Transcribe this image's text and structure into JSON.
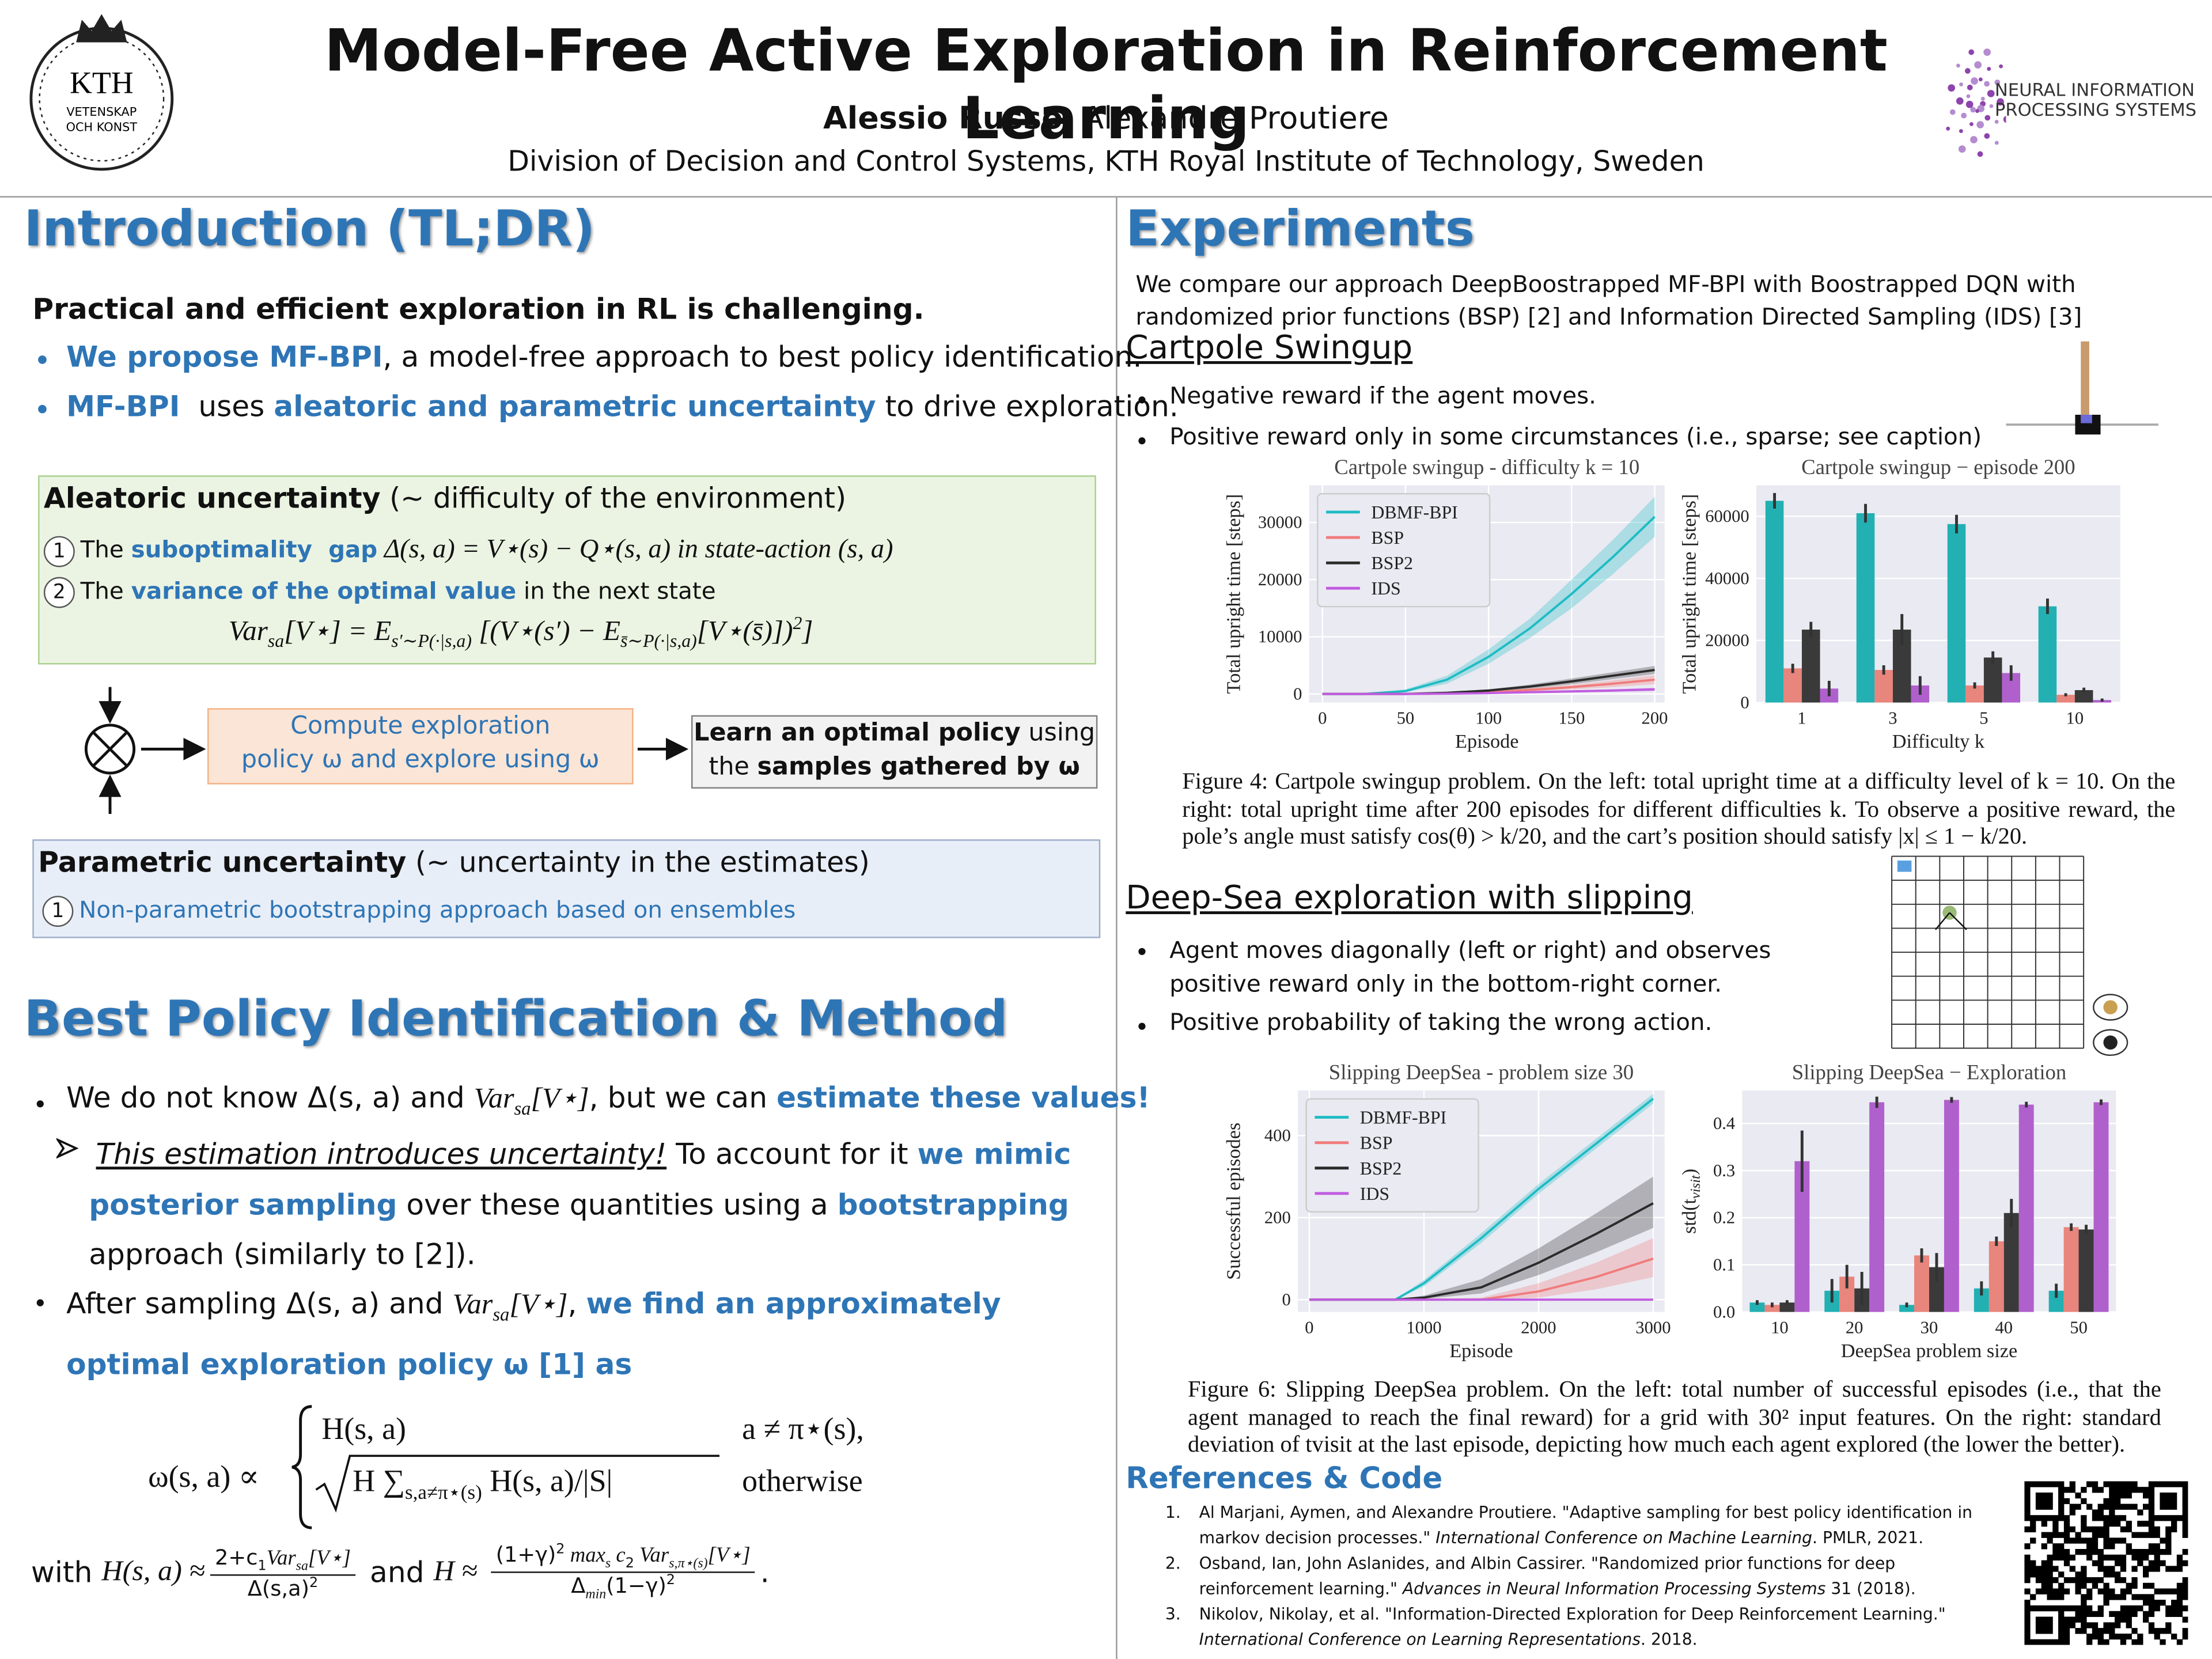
{
  "header": {
    "title": "Model-Free Active Exploration in Reinforcement Learning",
    "author_bold": "Alessio Russo",
    "author_rest": ", Alexandre Proutiere",
    "affiliation": "Division of Decision and Control Systems, KTH Royal Institute of Technology, Sweden",
    "kth": [
      "KTH",
      "VETENSKAP",
      "OCH KONST"
    ],
    "neurips": [
      "NEURAL INFORMATION",
      "PROCESSING SYSTEMS"
    ]
  },
  "intro": {
    "heading": "Introduction (TL;DR)",
    "lead": "Practical and efficient exploration in RL is challenging.",
    "bullets": [
      [
        "We propose MF-BPI",
        ", a model-free approach to best policy identification."
      ],
      [
        "MF-BPI",
        "  uses ",
        "aleatoric and parametric uncertainty",
        " to drive exploration."
      ]
    ]
  },
  "aleatoric": {
    "title": [
      "Aleatoric uncertainty",
      " (~ difficulty of the environment)"
    ],
    "items": [
      {
        "num": "1",
        "text": [
          "The ",
          "suboptimality  gap",
          " Δ(s, a) = V⋆(s) − Q⋆(s, a) in state-action (s, a)"
        ]
      },
      {
        "num": "2",
        "text": [
          "The ",
          "variance of the optimal value",
          " in the next state"
        ]
      }
    ],
    "formula": [
      "Var",
      "sa",
      "[V⋆] = E",
      "s′∼P(·|s,a)",
      " [(V⋆(s′) − E",
      "s̄∼P(·|s,a)",
      "[V⋆(s̄)])",
      "2",
      "]"
    ]
  },
  "flow": {
    "compute": [
      "Compute exploration",
      "policy ω and explore using ω"
    ],
    "learn": [
      "Learn an optimal policy",
      " using",
      "the ",
      "samples gathered by ω"
    ]
  },
  "parametric": {
    "title": [
      "Parametric uncertainty",
      " (~ uncertainty in the estimates)"
    ],
    "num": "1",
    "text": "Non-parametric bootstrapping approach based on ensembles"
  },
  "bpi": {
    "heading": "Best Policy Identification & Method",
    "bullet1": [
      "We do not know Δ(s, a) and ",
      "Var",
      "sa",
      "[V⋆]",
      ", but we can ",
      "estimate these values",
      "!"
    ],
    "sub": [
      "This estimation introduces uncertainty!",
      " To account for it ",
      "we mimic posterior sampling",
      " over these quantities using a ",
      "bootstrapping",
      " approach (similarly to [2])."
    ],
    "bullet2": [
      "After sampling Δ(s, a) and ",
      "Var",
      "sa",
      "[V⋆]",
      ", ",
      "we find an approximately optimal exploration policy ω [1] as"
    ],
    "omega": {
      "lhs": "ω(s, a) ∝",
      "case1": "H(s, a)",
      "cond1": "a ≠ π⋆(s),",
      "case2": [
        "H ∑",
        "s,a≠π⋆(s)",
        " H(s, a)/|S|"
      ],
      "cond2": "otherwise"
    },
    "with": [
      "with ",
      "H(s, a) ≈",
      "2+c",
      "1",
      "Var",
      "sa",
      "[V⋆]",
      "Δ(s,a)",
      "2",
      " and ",
      "H ≈",
      "(1+γ)",
      "2",
      " max",
      "s",
      " c",
      "2",
      " Var",
      "s,π⋆(s)",
      "[V⋆]",
      "Δ",
      "min",
      "(1−γ)",
      "2",
      "."
    ]
  },
  "experiments": {
    "heading": "Experiments",
    "intro": "We compare our approach DeepBoostrapped MF-BPI with Boostrapped DQN with randomized prior functions (BSP) [2] and Information Directed Sampling (IDS) [3]",
    "cartpole": {
      "heading": "Cartpole Swingup",
      "bullets": [
        "Negative reward if the agent moves.",
        "Positive reward only in some circumstances (i.e., sparse; see caption)"
      ],
      "caption": "Figure 4: Cartpole swingup problem. On the left: total upright time at a difficulty level of k = 10. On the right: total upright time after 200 episodes for different difficulties k. To observe a positive reward, the pole’s angle must satisfy cos(θ) > k/20, and the cart’s position should satisfy |x| ≤ 1 − k/20."
    },
    "deepsea": {
      "heading": "Deep-Sea exploration with slipping",
      "bullets": [
        "Agent moves diagonally (left or right) and observes positive reward only in the bottom-right corner.",
        "Positive probability of taking the wrong action."
      ],
      "caption": "Figure 6: Slipping DeepSea problem. On the left: total number of successful episodes (i.e., that the agent managed to reach the final reward) for a grid with 30² input features. On the right: standard deviation of tvisit at the last episode, depicting how much each agent explored (the lower the better)."
    }
  },
  "references": {
    "heading": "References & Code",
    "items": [
      {
        "num": "1.",
        "text": [
          "Al Marjani, Aymen, and Alexandre Proutiere. \"Adaptive sampling for best policy identification in markov decision processes.\" ",
          "International Conference on Machine Learning",
          ". PMLR, 2021."
        ]
      },
      {
        "num": "2.",
        "text": [
          "Osband, Ian, John Aslanides, and Albin Cassirer. \"Randomized prior functions for deep reinforcement learning.\" ",
          "Advances in Neural Information Processing Systems",
          " 31 (2018)."
        ]
      },
      {
        "num": "3.",
        "text": [
          "Nikolov, Nikolay, et al. \"Information-Directed Exploration for Deep Reinforcement Learning.\" ",
          "International Conference on Learning Representations",
          ". 2018."
        ]
      }
    ]
  },
  "chart_data": [
    {
      "type": "line",
      "title": "Cartpole swingup - difficulty k = 10",
      "x_label": "Episode",
      "y_label": "Total upright time [steps]",
      "x": [
        0,
        25,
        50,
        75,
        100,
        125,
        150,
        175,
        200
      ],
      "xlim": [
        -8,
        206
      ],
      "xticks": [
        0,
        50,
        100,
        150,
        200
      ],
      "ylim": [
        -1500,
        36500
      ],
      "yticks": [
        0,
        10000,
        20000,
        30000
      ],
      "grid": true,
      "legend": "upper left",
      "series": [
        {
          "name": "DBMF-BPI",
          "color": "#1fbcc4",
          "values": [
            0,
            0,
            500,
            2500,
            6500,
            11500,
            17500,
            24000,
            31000
          ],
          "lower": [
            0,
            0,
            300,
            1800,
            5300,
            9800,
            15000,
            21000,
            27500
          ],
          "upper": [
            0,
            0,
            800,
            3200,
            7800,
            13200,
            20000,
            27000,
            34500
          ]
        },
        {
          "name": "BSP",
          "color": "#f07c7c",
          "values": [
            0,
            0,
            0,
            100,
            300,
            700,
            1200,
            1800,
            2500
          ],
          "lower": [
            0,
            0,
            0,
            50,
            150,
            400,
            800,
            1200,
            1700
          ],
          "upper": [
            0,
            0,
            0,
            150,
            450,
            1000,
            1600,
            2400,
            3300
          ]
        },
        {
          "name": "BSP2",
          "color": "#2b2b2b",
          "values": [
            0,
            0,
            0,
            200,
            600,
            1300,
            2200,
            3200,
            4200
          ],
          "lower": [
            0,
            0,
            0,
            120,
            400,
            950,
            1700,
            2600,
            3500
          ],
          "upper": [
            0,
            0,
            0,
            280,
            800,
            1650,
            2700,
            3800,
            4900
          ]
        },
        {
          "name": "IDS",
          "color": "#c05ce0",
          "values": [
            0,
            0,
            0,
            50,
            150,
            300,
            450,
            600,
            800
          ],
          "lower": [
            0,
            0,
            0,
            20,
            80,
            180,
            280,
            380,
            500
          ],
          "upper": [
            0,
            0,
            0,
            80,
            220,
            420,
            620,
            820,
            1100
          ]
        }
      ]
    },
    {
      "type": "bar",
      "title": "Cartpole swingup  −  episode 200",
      "x_label": "Difficulty k",
      "y_label": "Total upright time [steps]",
      "categories": [
        "1",
        "3",
        "5",
        "10"
      ],
      "ylim": [
        0,
        70000
      ],
      "yticks": [
        0,
        20000,
        40000,
        60000
      ],
      "grid": true,
      "series": [
        {
          "name": "DBMF-BPI",
          "color": "#22b0b3",
          "values": [
            65000,
            61000,
            57500,
            31000
          ],
          "errors": [
            2500,
            3000,
            3000,
            2500
          ]
        },
        {
          "name": "BSP",
          "color": "#e8857c",
          "values": [
            11000,
            10500,
            5500,
            2500
          ],
          "errors": [
            1500,
            1500,
            1000,
            500
          ]
        },
        {
          "name": "BSP2",
          "color": "#3a3a3a",
          "values": [
            23500,
            23500,
            14500,
            4000
          ],
          "errors": [
            2500,
            5000,
            2000,
            800
          ]
        },
        {
          "name": "IDS",
          "color": "#b060cc",
          "values": [
            4500,
            5500,
            9500,
            800
          ],
          "errors": [
            2500,
            3000,
            2500,
            500
          ]
        }
      ]
    },
    {
      "type": "line",
      "title": "Slipping DeepSea - problem size 30",
      "x_label": "Episode",
      "y_label": "Successful episodes",
      "x": [
        0,
        500,
        750,
        1000,
        1500,
        2000,
        2500,
        3000
      ],
      "xlim": [
        -100,
        3100
      ],
      "xticks": [
        0,
        1000,
        2000,
        3000
      ],
      "ylim": [
        -30,
        510
      ],
      "yticks": [
        0,
        200,
        400
      ],
      "grid": true,
      "legend": "upper left",
      "series": [
        {
          "name": "DBMF-BPI",
          "color": "#1fbcc4",
          "values": [
            0,
            0,
            0,
            40,
            150,
            270,
            380,
            490
          ],
          "lower": [
            0,
            0,
            0,
            32,
            138,
            258,
            368,
            478
          ],
          "upper": [
            0,
            0,
            0,
            48,
            162,
            282,
            392,
            502
          ]
        },
        {
          "name": "BSP",
          "color": "#f07c7c",
          "values": [
            0,
            0,
            0,
            0,
            0,
            20,
            55,
            100
          ],
          "lower": [
            0,
            0,
            0,
            0,
            0,
            5,
            25,
            55
          ],
          "upper": [
            0,
            0,
            0,
            0,
            5,
            40,
            90,
            150
          ]
        },
        {
          "name": "BSP2",
          "color": "#2b2b2b",
          "values": [
            0,
            0,
            0,
            5,
            30,
            90,
            160,
            235
          ],
          "lower": [
            0,
            0,
            0,
            2,
            15,
            60,
            115,
            175
          ],
          "upper": [
            0,
            0,
            0,
            10,
            50,
            125,
            210,
            300
          ]
        },
        {
          "name": "IDS",
          "color": "#c05ce0",
          "values": [
            0,
            0,
            0,
            0,
            0,
            0,
            0,
            0
          ],
          "lower": [
            0,
            0,
            0,
            0,
            0,
            0,
            0,
            0
          ],
          "upper": [
            0,
            0,
            0,
            0,
            0,
            0,
            0,
            0
          ]
        }
      ]
    },
    {
      "type": "bar",
      "title": "Slipping DeepSea  −  Exploration",
      "x_label": "DeepSea problem size",
      "y_label": "std(t",
      "y_label_sub": "visit",
      "y_label_end": ")",
      "categories": [
        "10",
        "20",
        "30",
        "40",
        "50"
      ],
      "ylim": [
        0,
        0.47
      ],
      "yticks": [
        {
          "value": 0,
          "label": "0.0"
        },
        0.1,
        0.2,
        0.3,
        0.4
      ],
      "grid": true,
      "series": [
        {
          "name": "DBMF-BPI",
          "color": "#22b0b3",
          "values": [
            0.02,
            0.045,
            0.015,
            0.05,
            0.045
          ],
          "errors": [
            0.005,
            0.025,
            0.005,
            0.015,
            0.015
          ]
        },
        {
          "name": "BSP",
          "color": "#e8857c",
          "values": [
            0.015,
            0.075,
            0.12,
            0.15,
            0.18
          ],
          "errors": [
            0.005,
            0.025,
            0.015,
            0.01,
            0.008
          ]
        },
        {
          "name": "BSP2",
          "color": "#3a3a3a",
          "values": [
            0.02,
            0.05,
            0.095,
            0.21,
            0.175
          ],
          "errors": [
            0.005,
            0.035,
            0.03,
            0.03,
            0.01
          ]
        },
        {
          "name": "IDS",
          "color": "#b060cc",
          "values": [
            0.32,
            0.445,
            0.45,
            0.44,
            0.445
          ],
          "errors": [
            0.065,
            0.012,
            0.006,
            0.006,
            0.006
          ]
        }
      ]
    }
  ]
}
